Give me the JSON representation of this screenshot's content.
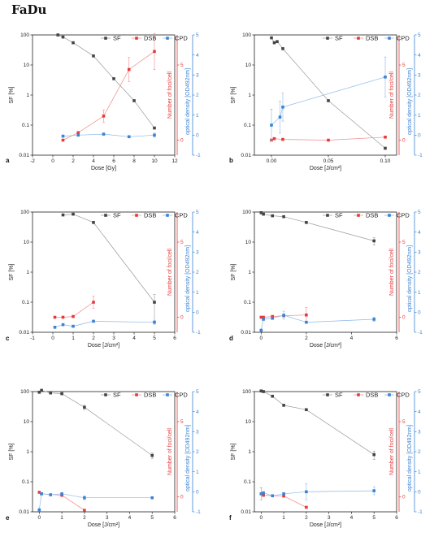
{
  "figure_title": "FaDu",
  "colors": {
    "SF": "#444444",
    "DSB": "#e8393a",
    "CPD": "#3b83d4",
    "sf_line": "#9a9a9a",
    "dsb_line": "#f08a8a",
    "cpd_line": "#8ab8e8"
  },
  "chart_data": [
    {
      "panel": "a",
      "type": "line",
      "xlabel": "Dose [Gy]",
      "ylabel": "SF [%]",
      "y2label": "Number of foci/cell",
      "y3label": "optical density [OD492nm]",
      "xlim": [
        -2,
        12
      ],
      "xticks": [
        -2,
        0,
        2,
        4,
        6,
        8,
        10,
        12
      ],
      "ylim_log": [
        0.01,
        100
      ],
      "yticks": [
        "0.01",
        "0.1",
        "1",
        "10",
        "100"
      ],
      "y2lim": [
        -1,
        7
      ],
      "y2ticks": [
        0,
        5
      ],
      "y3lim": [
        -1,
        5
      ],
      "y3ticks": [
        -1,
        0,
        1,
        2,
        3,
        4,
        5
      ],
      "legend": [
        "SF",
        "DSB",
        "CPD"
      ],
      "series": [
        {
          "name": "SF",
          "x": [
            0.5,
            1,
            2,
            4,
            6,
            8,
            10
          ],
          "y": [
            100,
            85,
            55,
            20,
            3.5,
            0.65,
            0.08
          ],
          "err": [
            0,
            0,
            0,
            0,
            0,
            0,
            0
          ]
        },
        {
          "name": "DSB",
          "x": [
            1,
            2.5,
            5,
            7.5,
            10
          ],
          "y": [
            0,
            0.5,
            1.6,
            4.7,
            5.9
          ],
          "err": [
            0,
            0,
            0.4,
            0.8,
            1.2
          ]
        },
        {
          "name": "CPD",
          "x": [
            1,
            2.5,
            5,
            7.5,
            10
          ],
          "y": [
            -0.05,
            0,
            0.05,
            -0.08,
            0
          ],
          "err": [
            0,
            0,
            0,
            0,
            0.1
          ]
        }
      ]
    },
    {
      "panel": "b",
      "type": "line",
      "xlabel": "Dose [J/cm²]",
      "ylabel": "SF [%]",
      "y2label": "Number of foci/cell",
      "y3label": "optical density [OD492nm]",
      "xlim": [
        -0.015,
        0.11
      ],
      "xticks": [
        0.0,
        0.05,
        0.1
      ],
      "xticklabels": [
        "0.00",
        "0.05",
        "0.10"
      ],
      "ylim_log": [
        0.01,
        100
      ],
      "yticks": [
        "0.01",
        "0.1",
        "1",
        "10",
        "100"
      ],
      "y2lim": [
        -1,
        7
      ],
      "y2ticks": [
        0,
        5
      ],
      "y3lim": [
        -1,
        5
      ],
      "y3ticks": [
        -1,
        0,
        1,
        2,
        3,
        4,
        5
      ],
      "legend": [
        "SF",
        "DSB",
        "CPD"
      ],
      "series": [
        {
          "name": "SF",
          "x": [
            0,
            0.0025,
            0.005,
            0.01,
            0.05,
            0.1
          ],
          "y": [
            80,
            55,
            60,
            35,
            0.65,
            0.017
          ],
          "err": [
            0,
            0,
            0,
            0,
            0,
            0
          ]
        },
        {
          "name": "DSB",
          "x": [
            0,
            0.0025,
            0.01,
            0.05,
            0.1
          ],
          "y": [
            0,
            0.1,
            0.05,
            0,
            0.2
          ],
          "err": [
            0,
            0,
            0,
            0,
            0
          ]
        },
        {
          "name": "CPD",
          "x": [
            0,
            0.0075,
            0.01,
            0.1
          ],
          "y": [
            0.5,
            0.9,
            1.4,
            2.9
          ],
          "err": [
            0.8,
            0.8,
            0.7,
            1.0
          ]
        }
      ]
    },
    {
      "panel": "c",
      "type": "line",
      "xlabel": "Dose [J/cm²]",
      "ylabel": "SF [%]",
      "y2label": "Number of foci/cell",
      "y3label": "optical density [OD492nm]",
      "xlim": [
        -1,
        6
      ],
      "xticks": [
        -1,
        0,
        1,
        2,
        3,
        4,
        5,
        6
      ],
      "ylim_log": [
        0.01,
        100
      ],
      "yticks": [
        "0.01",
        "0.1",
        "1",
        "10",
        "100"
      ],
      "y2lim": [
        -1,
        7
      ],
      "y2ticks": [
        0,
        5
      ],
      "y3lim": [
        -1,
        5
      ],
      "y3ticks": [
        -1,
        0,
        1,
        2,
        3,
        4,
        5
      ],
      "legend": [
        "SF",
        "DSB",
        "CPD"
      ],
      "series": [
        {
          "name": "SF",
          "x": [
            0.5,
            1,
            2,
            5
          ],
          "y": [
            80,
            85,
            45,
            0.1
          ],
          "err": [
            0,
            0,
            0,
            0.08
          ]
        },
        {
          "name": "DSB",
          "x": [
            0.1,
            0.5,
            1,
            2
          ],
          "y": [
            0,
            0,
            0.05,
            1.0
          ],
          "err": [
            0,
            0,
            0,
            0.4
          ]
        },
        {
          "name": "CPD",
          "x": [
            0.1,
            0.5,
            1,
            2,
            5
          ],
          "y": [
            -0.75,
            -0.62,
            -0.7,
            -0.45,
            -0.5
          ],
          "err": [
            0,
            0,
            0,
            0,
            0.1
          ]
        }
      ]
    },
    {
      "panel": "d",
      "type": "line",
      "xlabel": "Dose [J/cm²]",
      "ylabel": "SF [%]",
      "y2label": "Number of foci/cell",
      "y3label": "optical density [OD492nm]",
      "xlim": [
        -0.3,
        6
      ],
      "xticks": [
        0,
        2,
        4,
        6
      ],
      "ylim_log": [
        0.01,
        100
      ],
      "yticks": [
        "0.01",
        "0.1",
        "1",
        "10",
        "100"
      ],
      "y2lim": [
        -1,
        7
      ],
      "y2ticks": [
        0,
        5
      ],
      "y3lim": [
        -1,
        5
      ],
      "y3ticks": [
        -1,
        0,
        1,
        2,
        3,
        4,
        5
      ],
      "legend": [
        "SF",
        "DSB",
        "CPD"
      ],
      "series": [
        {
          "name": "SF",
          "x": [
            0,
            0.1,
            0.5,
            1,
            2,
            5
          ],
          "y": [
            95,
            85,
            75,
            70,
            45,
            11
          ],
          "err": [
            0,
            0,
            0,
            0,
            0,
            3
          ]
        },
        {
          "name": "DSB",
          "x": [
            0,
            0.1,
            0.5,
            1,
            2
          ],
          "y": [
            0,
            0,
            0.05,
            0.1,
            0.15
          ],
          "err": [
            0,
            0,
            0,
            0,
            0.5
          ]
        },
        {
          "name": "CPD",
          "x": [
            0,
            0.1,
            0.5,
            1,
            2,
            5
          ],
          "y": [
            -0.9,
            -0.35,
            -0.3,
            -0.15,
            -0.5,
            -0.35
          ],
          "err": [
            0,
            0,
            0,
            0.2,
            0,
            0.1
          ]
        }
      ]
    },
    {
      "panel": "e",
      "type": "line",
      "xlabel": "Dose [J/cm²]",
      "ylabel": "SF [%]",
      "y2label": "Number of foci/cell",
      "y3label": "optical density [OD492nm]",
      "xlim": [
        -0.3,
        6
      ],
      "xticks": [
        0,
        1,
        2,
        3,
        4,
        5,
        6
      ],
      "ylim_log": [
        0.01,
        100
      ],
      "yticks": [
        "0.01",
        "0.1",
        "1",
        "10",
        "100"
      ],
      "y2lim": [
        -1,
        7
      ],
      "y2ticks": [
        0,
        5
      ],
      "y3lim": [
        -1,
        5
      ],
      "y3ticks": [
        -1,
        0,
        1,
        2,
        3,
        4,
        5
      ],
      "legend": [
        "SF",
        "DSB",
        "CPD"
      ],
      "series": [
        {
          "name": "SF",
          "x": [
            0,
            0.1,
            0.5,
            1,
            2,
            5
          ],
          "y": [
            95,
            110,
            90,
            85,
            30,
            0.75
          ],
          "err": [
            0,
            0,
            0,
            0,
            5,
            0.15
          ]
        },
        {
          "name": "DSB",
          "x": [
            0,
            0.1,
            1,
            2
          ],
          "y": [
            0.3,
            0.2,
            0.1,
            -0.9
          ],
          "err": [
            0,
            0,
            0,
            0
          ]
        },
        {
          "name": "CPD",
          "x": [
            0,
            0.1,
            0.5,
            1,
            2,
            5
          ],
          "y": [
            -0.9,
            -0.1,
            -0.15,
            -0.1,
            -0.3,
            -0.3
          ],
          "err": [
            0,
            0,
            0,
            0,
            0.1,
            0
          ]
        }
      ]
    },
    {
      "panel": "f",
      "type": "line",
      "xlabel": "Dose [J/cm²]",
      "ylabel": "SF [%]",
      "y2label": "Number of foci/cell",
      "y3label": "optical density [OD492nm]",
      "xlim": [
        -0.3,
        6
      ],
      "xticks": [
        0,
        1,
        2,
        3,
        4,
        5,
        6
      ],
      "ylim_log": [
        0.01,
        100
      ],
      "yticks": [
        "0.01",
        "0.1",
        "1",
        "10",
        "100"
      ],
      "y2lim": [
        -1,
        7
      ],
      "y2ticks": [
        0,
        5
      ],
      "y3lim": [
        -1,
        5
      ],
      "y3ticks": [
        -1,
        0,
        1,
        2,
        3,
        4,
        5
      ],
      "legend": [
        "SF",
        "DSB",
        "CPD"
      ],
      "series": [
        {
          "name": "SF",
          "x": [
            0,
            0.1,
            0.5,
            1,
            2,
            5
          ],
          "y": [
            105,
            100,
            70,
            35,
            25,
            0.8
          ],
          "err": [
            0,
            0,
            0,
            0,
            0,
            0.25
          ]
        },
        {
          "name": "DSB",
          "x": [
            0,
            0.1,
            1,
            2
          ],
          "y": [
            0.2,
            0.1,
            0.05,
            -0.7
          ],
          "err": [
            0.4,
            0,
            0,
            0
          ]
        },
        {
          "name": "CPD",
          "x": [
            0,
            0.1,
            0.5,
            1,
            2,
            5
          ],
          "y": [
            -0.1,
            -0.05,
            -0.2,
            -0.1,
            0,
            0.05
          ],
          "err": [
            0.3,
            0,
            0,
            0,
            0.4,
            0.2
          ]
        }
      ]
    }
  ]
}
